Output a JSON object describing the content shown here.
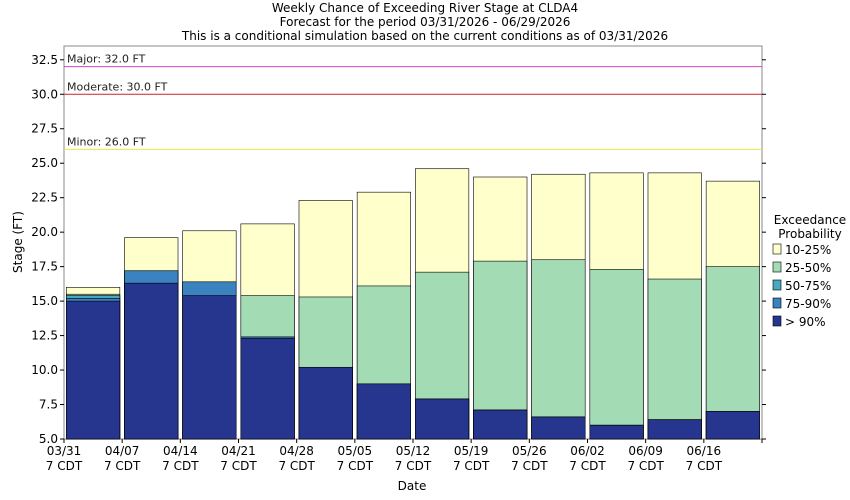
{
  "chart_data": {
    "type": "bar",
    "title": "Weekly Chance of Exceeding River Stage at CLDA4",
    "subtitle_1": "Forecast for the period 03/31/2026 - 06/29/2026",
    "subtitle_2": "This is a conditional simulation based on the current conditions as of 03/31/2026",
    "xlabel": "Date",
    "ylabel": "Stage (FT)",
    "ylim": [
      5.0,
      33.5
    ],
    "yticks": [
      "5.0",
      "7.5",
      "10.0",
      "12.5",
      "15.0",
      "17.5",
      "20.0",
      "22.5",
      "25.0",
      "27.5",
      "30.0",
      "32.5"
    ],
    "xticks": [
      {
        "date": "03/31",
        "tz": "7 CDT"
      },
      {
        "date": "04/07",
        "tz": "7 CDT"
      },
      {
        "date": "04/14",
        "tz": "7 CDT"
      },
      {
        "date": "04/21",
        "tz": "7 CDT"
      },
      {
        "date": "04/28",
        "tz": "7 CDT"
      },
      {
        "date": "05/05",
        "tz": "7 CDT"
      },
      {
        "date": "05/12",
        "tz": "7 CDT"
      },
      {
        "date": "05/19",
        "tz": "7 CDT"
      },
      {
        "date": "05/26",
        "tz": "7 CDT"
      },
      {
        "date": "06/02",
        "tz": "7 CDT"
      },
      {
        "date": "06/09",
        "tz": "7 CDT"
      },
      {
        "date": "06/16",
        "tz": "7 CDT"
      }
    ],
    "reference_lines": [
      {
        "label": "Major: 32.0 FT",
        "value": 32.0,
        "color": "#cc44cc"
      },
      {
        "label": "Moderate: 30.0 FT",
        "value": 30.0,
        "color": "#cc2222"
      },
      {
        "label": "Minor: 26.0 FT",
        "value": 26.0,
        "color": "#e8e84a"
      }
    ],
    "legend": {
      "title_1": "Exceedance",
      "title_2": "Probability",
      "placement": "right"
    },
    "series": [
      {
        "name": "> 90%",
        "color": "#26368f",
        "values": [
          15.0,
          16.3,
          15.4,
          12.3,
          10.2,
          9.0,
          7.9,
          7.1,
          6.6,
          6.0,
          6.4,
          7.0
        ]
      },
      {
        "name": "75-90%",
        "color": "#3a82c0",
        "values": [
          15.2,
          17.2,
          16.4,
          12.4,
          10.2,
          9.0,
          7.9,
          7.1,
          6.6,
          6.0,
          6.4,
          7.0
        ]
      },
      {
        "name": "50-75%",
        "color": "#48a8c0",
        "values": [
          15.4,
          17.2,
          16.4,
          12.4,
          10.2,
          9.0,
          7.9,
          7.1,
          6.6,
          6.0,
          6.4,
          7.0
        ]
      },
      {
        "name": "25-50%",
        "color": "#a3dbb5",
        "values": [
          15.5,
          17.2,
          16.4,
          15.4,
          15.3,
          16.1,
          17.1,
          17.9,
          18.0,
          17.3,
          16.6,
          17.5
        ]
      },
      {
        "name": "10-25%",
        "color": "#ffffcc",
        "values": [
          16.0,
          19.6,
          20.1,
          20.6,
          22.3,
          22.9,
          24.6,
          24.0,
          24.2,
          24.3,
          24.3,
          23.7
        ]
      }
    ]
  }
}
